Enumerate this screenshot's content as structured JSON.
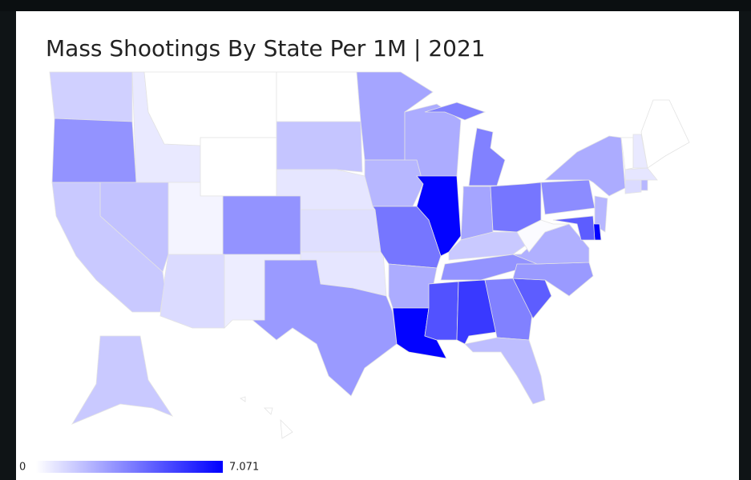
{
  "chart_data": {
    "type": "choropleth",
    "title": "Mass Shootings By State Per 1M | 2021",
    "values": [
      1.3,
      3.0,
      0.6,
      0,
      0,
      0,
      1.6,
      0.7,
      0.9,
      0.7,
      2.8,
      0.5,
      3.0,
      0.3,
      1.0,
      1.7,
      1.5,
      2.5,
      2.3,
      2.0,
      3.8,
      2.3,
      7.0,
      7.0,
      3.5,
      2.5,
      3.8,
      1.5,
      3.0,
      4.8,
      5.5,
      3.5,
      1.8,
      4.5,
      2.8,
      2.2,
      0.1,
      3.2,
      2.3,
      2.0,
      7.0,
      4.5,
      0,
      0.6,
      0,
      0.7,
      1.0,
      2.0,
      1.5,
      0
    ],
    "colorscale": {
      "min": 0,
      "max": 7.071,
      "colors": [
        "#ffffff",
        "#0000ff"
      ]
    }
  }
}
